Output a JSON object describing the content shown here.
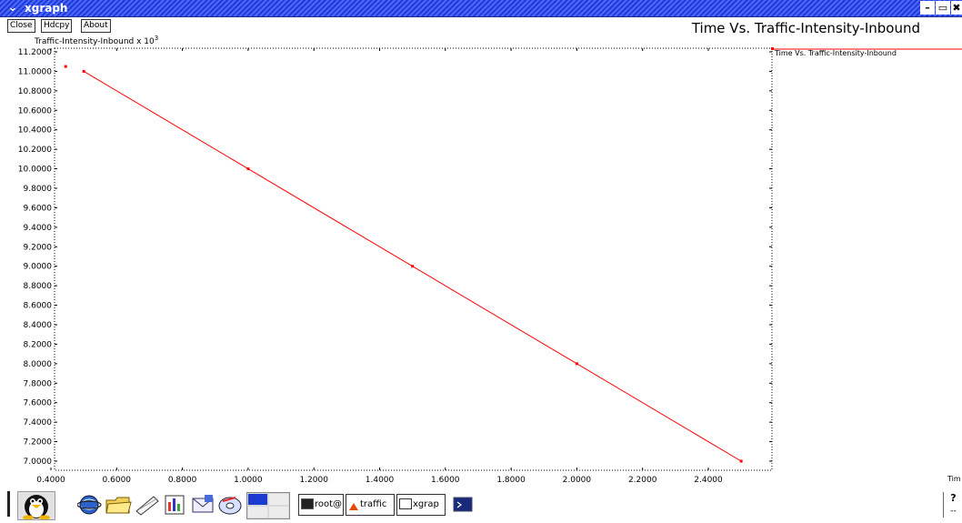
{
  "window": {
    "title": "xgraph",
    "menu_glyph": "⌄",
    "minimize": "–",
    "maximize": "▭",
    "close": "✖"
  },
  "toolbar": {
    "close_label": "Close",
    "hdcpy_label": "Hdcpy",
    "about_label": "About"
  },
  "graph_title": "Time Vs. Traffic-Intensity-Inbound",
  "ylabel_prefix": "Traffic-Intensity-Inbound x 10",
  "ylabel_exp": "3",
  "x_unit_label": "Tim",
  "chart_data": {
    "type": "line",
    "title": "Time Vs. Traffic-Intensity-Inbound",
    "ylabel": "Traffic-Intensity-Inbound x 10^3",
    "xlabel": "Tim",
    "xlim": [
      0.4,
      2.6
    ],
    "ylim": [
      6.9,
      11.2
    ],
    "x_ticks": [
      "0.4000",
      "0.6000",
      "0.8000",
      "1.0000",
      "1.2000",
      "1.4000",
      "1.6000",
      "1.8000",
      "2.0000",
      "2.2000",
      "2.4000"
    ],
    "y_ticks": [
      "11.2000",
      "11.0000",
      "10.8000",
      "10.6000",
      "10.4000",
      "10.2000",
      "10.0000",
      "9.8000",
      "9.6000",
      "9.4000",
      "9.2000",
      "9.0000",
      "8.8000",
      "8.6000",
      "8.4000",
      "8.2000",
      "8.0000",
      "7.8000",
      "7.6000",
      "7.4000",
      "7.2000",
      "7.0000"
    ],
    "series": [
      {
        "name": "Time Vs. Traffic-Intensity-Inbound",
        "color": "#ff0000",
        "x": [
          0.5,
          1.0,
          1.5,
          2.0,
          2.5
        ],
        "y": [
          11.0,
          10.0,
          9.0,
          8.0,
          7.0
        ]
      }
    ],
    "extra_points": [
      {
        "x": 0.445,
        "y": 11.05
      }
    ],
    "grid": false,
    "legend": "right"
  },
  "taskbar": {
    "tasks": [
      {
        "label": "root@"
      },
      {
        "label": "traffic"
      },
      {
        "label": "xgrap"
      }
    ],
    "help_glyph": "?",
    "help_sub": "--"
  }
}
